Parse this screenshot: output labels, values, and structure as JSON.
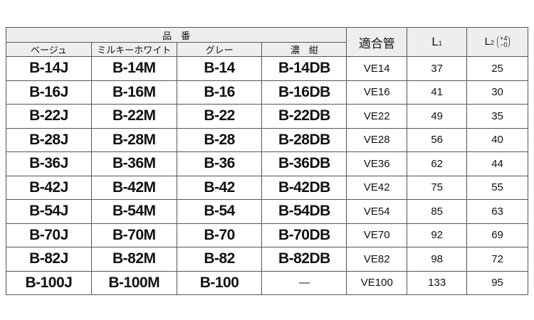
{
  "header": {
    "group": "品　番",
    "colors": [
      "ベージュ",
      "ミルキーホワイト",
      "グレー",
      "濃　紺"
    ],
    "pipe": "適合管",
    "l1": "L",
    "l1_sub": "1",
    "l2": "L",
    "l2_sub": "2",
    "l2_tol_plus": "+4",
    "l2_tol_minus": "−0"
  },
  "rows": [
    [
      "B-14J",
      "B-14M",
      "B-14",
      "B-14DB",
      "VE14",
      "37",
      "25"
    ],
    [
      "B-16J",
      "B-16M",
      "B-16",
      "B-16DB",
      "VE16",
      "41",
      "30"
    ],
    [
      "B-22J",
      "B-22M",
      "B-22",
      "B-22DB",
      "VE22",
      "49",
      "35"
    ],
    [
      "B-28J",
      "B-28M",
      "B-28",
      "B-28DB",
      "VE28",
      "56",
      "40"
    ],
    [
      "B-36J",
      "B-36M",
      "B-36",
      "B-36DB",
      "VE36",
      "62",
      "44"
    ],
    [
      "B-42J",
      "B-42M",
      "B-42",
      "B-42DB",
      "VE42",
      "75",
      "55"
    ],
    [
      "B-54J",
      "B-54M",
      "B-54",
      "B-54DB",
      "VE54",
      "85",
      "63"
    ],
    [
      "B-70J",
      "B-70M",
      "B-70",
      "B-70DB",
      "VE70",
      "92",
      "69"
    ],
    [
      "B-82J",
      "B-82M",
      "B-82",
      "B-82DB",
      "VE82",
      "98",
      "72"
    ],
    [
      "B-100J",
      "B-100M",
      "B-100",
      "—",
      "VE100",
      "133",
      "95"
    ]
  ]
}
